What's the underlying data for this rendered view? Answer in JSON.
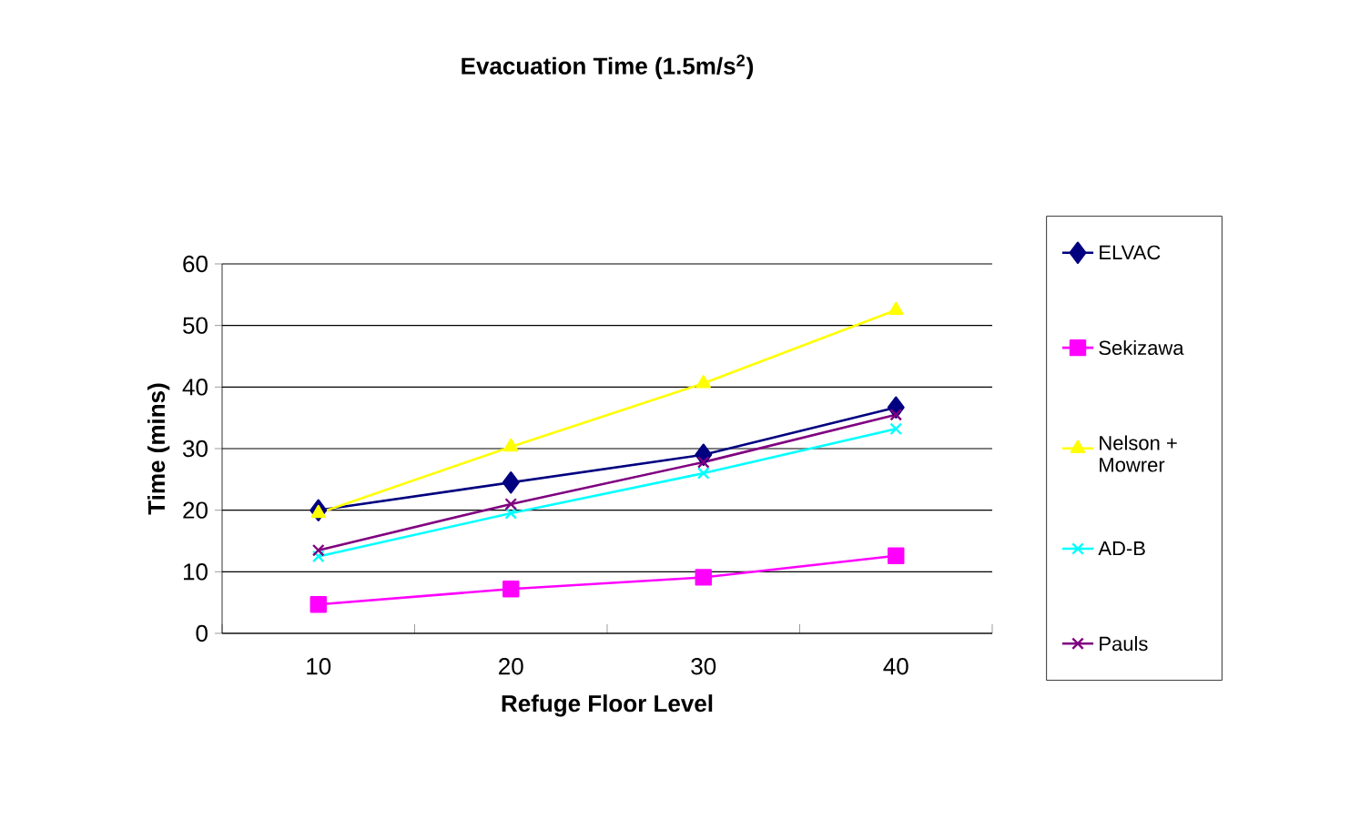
{
  "chart_data": {
    "type": "line",
    "title": "Evacuation Time (1.5m/s$^{2}$)",
    "xlabel": "Refuge Floor Level",
    "ylabel": "Time (mins)",
    "categories": [
      "10",
      "20",
      "30",
      "40"
    ],
    "series": [
      {
        "name": "ELVAC",
        "color": "#000080",
        "marker": "diamond",
        "values": [
          20,
          24.5,
          29,
          36.7
        ]
      },
      {
        "name": "Sekizawa",
        "color": "#ff00ff",
        "marker": "square",
        "values": [
          4.7,
          7.2,
          9.1,
          12.6
        ]
      },
      {
        "name": "Nelson + Mowrer",
        "color": "#ffff00",
        "marker": "triangle",
        "values": [
          19.5,
          30.3,
          40.6,
          52.5
        ]
      },
      {
        "name": "AD-B",
        "color": "#00ffff",
        "marker": "cross",
        "values": [
          12.5,
          19.5,
          26,
          33.2
        ]
      },
      {
        "name": "Pauls",
        "color": "#800080",
        "marker": "cross",
        "values": [
          13.5,
          21,
          27.8,
          35.5
        ]
      }
    ],
    "ylim": [
      0,
      60
    ],
    "yticks": [
      0,
      10,
      20,
      30,
      40,
      50,
      60
    ],
    "grid": "y",
    "legend": "right",
    "line_style": "solid"
  }
}
